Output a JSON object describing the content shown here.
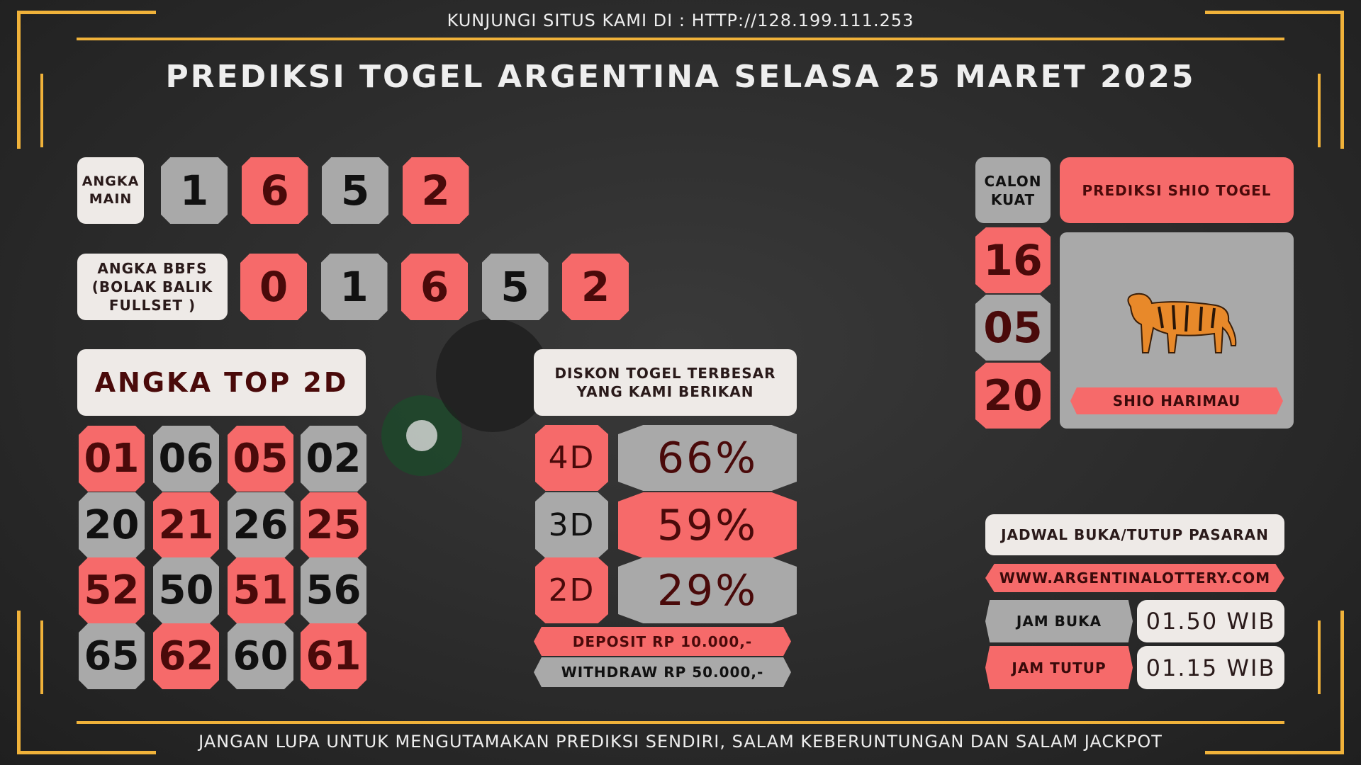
{
  "header": {
    "site": "KUNJUNGI SITUS KAMI DI : HTTP://128.199.111.253",
    "title": "PREDIKSI TOGEL ARGENTINA SELASA 25 MARET 2025"
  },
  "angka_main": {
    "label": "ANGKA MAIN",
    "digits": [
      "1",
      "6",
      "5",
      "2"
    ]
  },
  "bbfs": {
    "label": "ANGKA BBFS (BOLAK BALIK FULLSET )",
    "digits": [
      "0",
      "1",
      "6",
      "5",
      "2"
    ]
  },
  "top2d": {
    "label": "ANGKA TOP 2D",
    "numbers": [
      "01",
      "06",
      "05",
      "02",
      "20",
      "21",
      "26",
      "25",
      "52",
      "50",
      "51",
      "56",
      "65",
      "62",
      "60",
      "61"
    ]
  },
  "diskon": {
    "title": "DISKON TOGEL TERBESAR YANG KAMI BERIKAN",
    "rows": [
      {
        "label": "4D",
        "value": "66%"
      },
      {
        "label": "3D",
        "value": "59%"
      },
      {
        "label": "2D",
        "value": "29%"
      }
    ],
    "deposit": "DEPOSIT RP 10.000,-",
    "withdraw": "WITHDRAW RP 50.000,-"
  },
  "shio": {
    "calon_label": "CALON KUAT",
    "numbers": [
      "16",
      "05",
      "20"
    ],
    "title": "PREDIKSI SHIO TOGEL",
    "name": "SHIO HARIMAU"
  },
  "jadwal": {
    "title": "JADWAL BUKA/TUTUP PASARAN",
    "website": "WWW.ARGENTINALOTTERY.COM",
    "buka_label": "JAM BUKA",
    "buka": "01.50 WIB",
    "tutup_label": "JAM TUTUP",
    "tutup": "01.15 WIB"
  },
  "footer": "JANGAN LUPA UNTUK MENGUTAMAKAN PREDIKSI SENDIRI, SALAM KEBERUNTUNGAN DAN SALAM JACKPOT"
}
